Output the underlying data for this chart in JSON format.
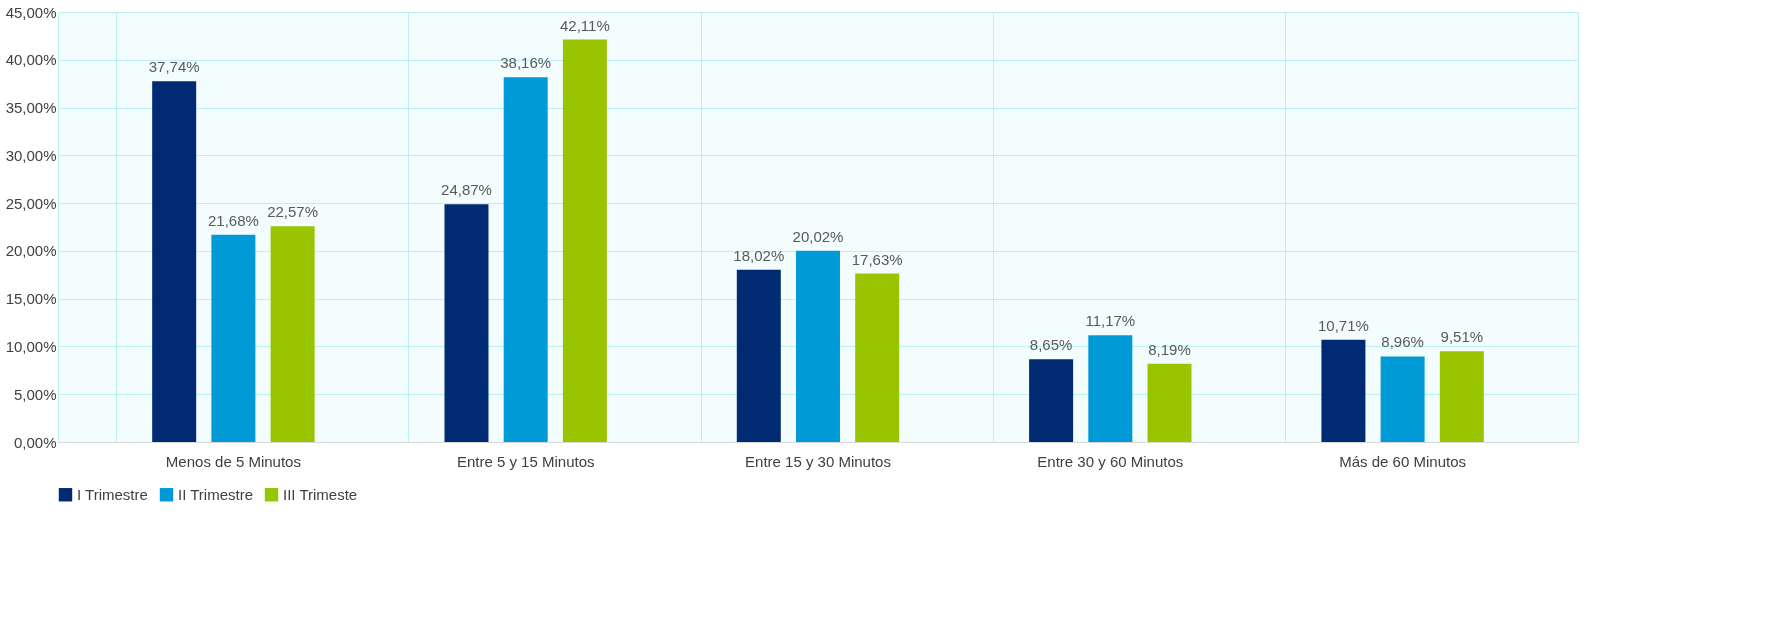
{
  "chart_data": {
    "type": "bar",
    "categories": [
      "Menos de 5 Minutos",
      "Entre 5 y 15 Minutos",
      "Entre 15 y 30 Minutos",
      "Entre 30 y 60 Minutos",
      "Más de 60 Minutos"
    ],
    "series": [
      {
        "name": "I Trimestre",
        "color": "#002a72",
        "values": [
          37.74,
          24.87,
          18.02,
          8.65,
          10.71
        ],
        "value_labels": [
          "37,74%",
          "24,87%",
          "18,02%",
          "8,65%",
          "10,71%"
        ]
      },
      {
        "name": "II Trimestre",
        "color": "#009bd7",
        "values": [
          21.68,
          38.16,
          20.02,
          11.17,
          8.96
        ],
        "value_labels": [
          "21,68%",
          "38,16%",
          "20,02%",
          "11,17%",
          "8,96%"
        ]
      },
      {
        "name": "III Trimeste",
        "color": "#99c400",
        "values": [
          22.57,
          42.11,
          17.63,
          8.19,
          9.51
        ],
        "value_labels": [
          "22,57%",
          "42,11%",
          "17,63%",
          "8,19%",
          "9,51%"
        ]
      }
    ],
    "ylim": [
      0,
      45
    ],
    "yticks": [
      {
        "value": 0,
        "label": "0,00%"
      },
      {
        "value": 5,
        "label": "5,00%"
      },
      {
        "value": 10,
        "label": "10,00%"
      },
      {
        "value": 15,
        "label": "15,00%"
      },
      {
        "value": 20,
        "label": "20,00%"
      },
      {
        "value": 25,
        "label": "25,00%"
      },
      {
        "value": 30,
        "label": "30,00%"
      },
      {
        "value": 35,
        "label": "35,00%"
      },
      {
        "value": 40,
        "label": "40,00%"
      },
      {
        "value": 45,
        "label": "45,00%"
      }
    ],
    "grid": true,
    "legend": "bottom"
  }
}
